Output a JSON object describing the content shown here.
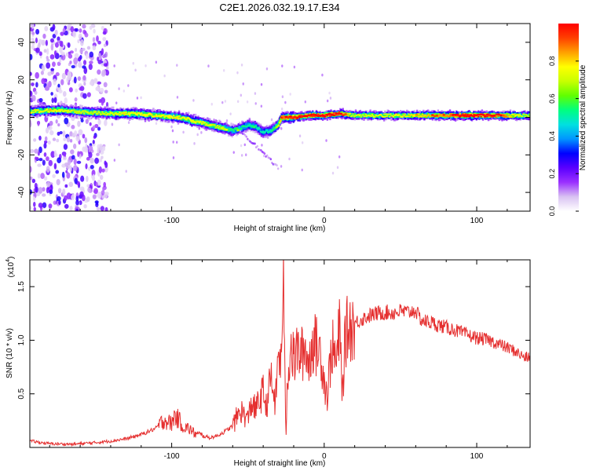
{
  "title": "C2E1.2026.032.19.17.E34",
  "colors": {
    "snr_line": "#e53030",
    "axis": "#000000",
    "background": "#ffffff",
    "colormap": [
      "#ffffff",
      "#d9c2f2",
      "#9b30ff",
      "#5a00ff",
      "#0000ff",
      "#0096ff",
      "#00e0e0",
      "#00ff80",
      "#60ff00",
      "#c8ff00",
      "#ffff00",
      "#ffa000",
      "#ff4000",
      "#ff0000"
    ]
  },
  "chart_data": [
    {
      "type": "heatmap",
      "title": "",
      "xlabel": "Height of straight line (km)",
      "ylabel": "Frequency (Hz)",
      "xlim": [
        -193,
        135
      ],
      "ylim": [
        -50,
        50
      ],
      "xticks": [
        -100,
        0,
        100
      ],
      "xtick_labels": [
        "-100",
        "0",
        "100"
      ],
      "yticks": [
        -40,
        -20,
        0,
        20,
        40
      ],
      "ytick_labels": [
        "-40",
        "-20",
        "0",
        "20",
        "40"
      ],
      "colorbar": {
        "label": "Normalized spectral amplitude",
        "range": [
          0,
          1
        ],
        "ticks": [
          0,
          0.2,
          0.4,
          0.6,
          0.8
        ],
        "tick_labels": [
          "0.0",
          "0.2",
          "0.4",
          "0.6",
          "0.8"
        ]
      },
      "ridge": {
        "x": [
          -193,
          -175,
          -160,
          -140,
          -125,
          -110,
          -95,
          -85,
          -75,
          -65,
          -60,
          -55,
          -50,
          -45,
          -40,
          -35,
          -30,
          -28,
          -20,
          -10,
          0,
          10,
          20,
          40,
          60,
          80,
          100,
          120,
          135
        ],
        "freq": [
          3,
          4,
          3,
          2,
          2,
          1,
          0,
          -2,
          -4,
          -6,
          -7,
          -6,
          -4,
          -5,
          -8,
          -7,
          -4,
          0,
          0,
          1,
          1,
          2,
          1,
          1,
          1,
          1,
          1,
          1,
          1
        ],
        "amplitude": [
          0.55,
          0.6,
          0.5,
          0.55,
          0.6,
          0.62,
          0.6,
          0.6,
          0.55,
          0.5,
          0.45,
          0.45,
          0.4,
          0.4,
          0.35,
          0.4,
          0.55,
          0.75,
          0.85,
          0.85,
          0.9,
          0.8,
          0.55,
          0.6,
          0.65,
          0.75,
          0.95,
          0.7,
          0.5
        ]
      },
      "noise_band_x": [
        -193,
        -142
      ]
    },
    {
      "type": "line",
      "title": "",
      "xlabel": "Height of straight line (km)",
      "ylabel": "SNR (10 * v/v)",
      "scale_label": "(x10",
      "scale_exponent": "4",
      "xlim": [
        -193,
        135
      ],
      "ylim": [
        0,
        17500
      ],
      "xticks": [
        -100,
        0,
        100
      ],
      "xtick_labels": [
        "-100",
        "0",
        "100"
      ],
      "yticks": [
        5000,
        10000,
        15000
      ],
      "ytick_labels": [
        "0.5",
        "1.0",
        "1.5"
      ],
      "series": [
        {
          "name": "SNR",
          "x": [
            -193,
            -180,
            -165,
            -150,
            -140,
            -130,
            -120,
            -110,
            -105,
            -100,
            -98,
            -95,
            -92,
            -88,
            -85,
            -80,
            -75,
            -70,
            -65,
            -60,
            -55,
            -50,
            -48,
            -45,
            -40,
            -38,
            -35,
            -32,
            -30,
            -28,
            -27,
            -26,
            -25,
            -24,
            -22,
            -20,
            -18,
            -15,
            -12,
            -10,
            -8,
            -5,
            -2,
            0,
            2,
            5,
            8,
            10,
            12,
            14,
            16,
            20,
            25,
            30,
            35,
            40,
            45,
            50,
            55,
            60,
            62,
            65,
            70,
            75,
            80,
            85,
            90,
            95,
            100,
            105,
            110,
            115,
            120,
            125,
            130,
            135
          ],
          "values": [
            600,
            350,
            300,
            450,
            600,
            800,
            1200,
            1800,
            2600,
            2200,
            3000,
            2500,
            1900,
            1700,
            1300,
            1100,
            900,
            1100,
            1500,
            2000,
            3500,
            2600,
            4200,
            3500,
            5200,
            3800,
            6500,
            4000,
            9000,
            7500,
            17500,
            8000,
            1500,
            7000,
            9500,
            8000,
            9000,
            8600,
            9300,
            7500,
            10000,
            9400,
            8700,
            6300,
            4800,
            9500,
            7800,
            11000,
            5200,
            10500,
            11200,
            11600,
            12000,
            12300,
            12500,
            12600,
            12550,
            12700,
            12600,
            12800,
            12150,
            11800,
            11650,
            11400,
            11200,
            11000,
            10700,
            10450,
            10200,
            10100,
            9900,
            9600,
            9300,
            9000,
            8500,
            8300
          ]
        }
      ]
    }
  ]
}
